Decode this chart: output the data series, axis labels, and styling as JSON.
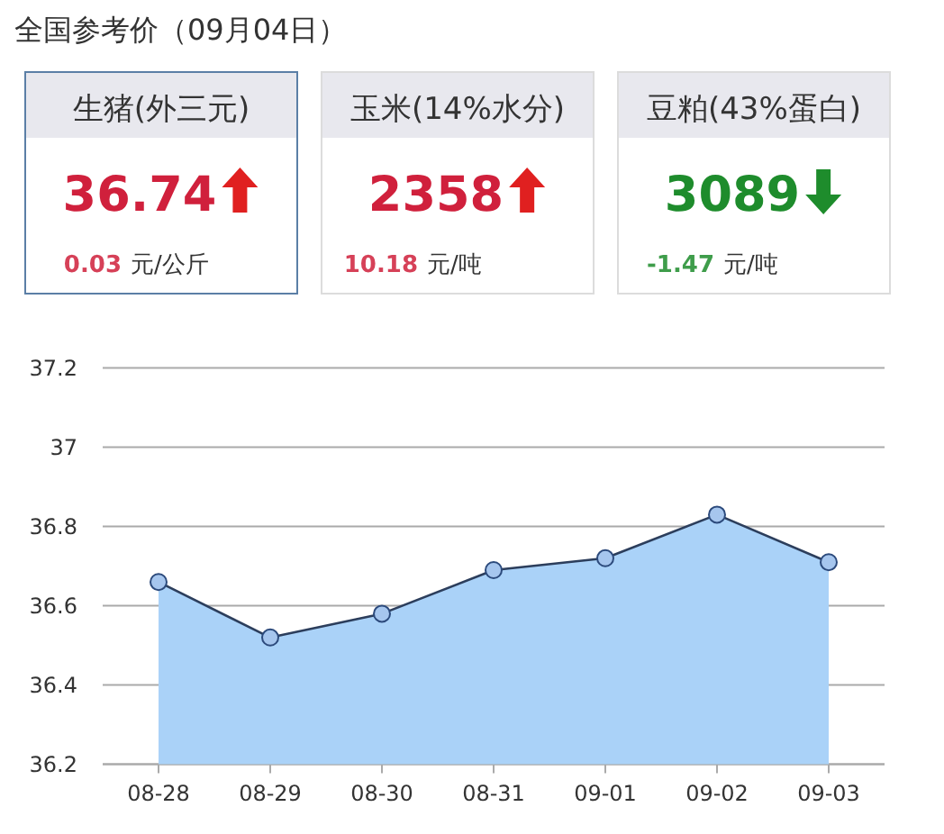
{
  "chart_data": [
    {
      "type": "other",
      "title": "全国参考价（09月04日）"
    },
    {
      "type": "other",
      "title": "生猪(外三元)",
      "annotations": [
        "36.74",
        "0.03",
        "元/公斤"
      ],
      "color": "#d0203c"
    },
    {
      "type": "other",
      "title": "玉米(14%水分)",
      "annotations": [
        "2358",
        "10.18",
        "元/吨"
      ],
      "color": "#d0203c"
    },
    {
      "type": "other",
      "title": "豆粕(43%蛋白)",
      "annotations": [
        "3089",
        "-1.47",
        "元/吨"
      ],
      "color": "#1e8c2c"
    },
    {
      "type": "area",
      "categories": [
        "08-28",
        "08-29",
        "08-30",
        "08-31",
        "09-01",
        "09-02",
        "09-03"
      ],
      "series": [
        {
          "color": "#aad2f8",
          "values": [
            36.66,
            36.52,
            36.58,
            36.69,
            36.72,
            36.83,
            36.71
          ]
        }
      ],
      "ylim": [
        36.2,
        37.2
      ],
      "yticks": [
        36.2,
        36.4,
        36.6,
        36.8,
        37,
        37.2
      ],
      "grid": "y",
      "marker": "circle"
    }
  ]
}
